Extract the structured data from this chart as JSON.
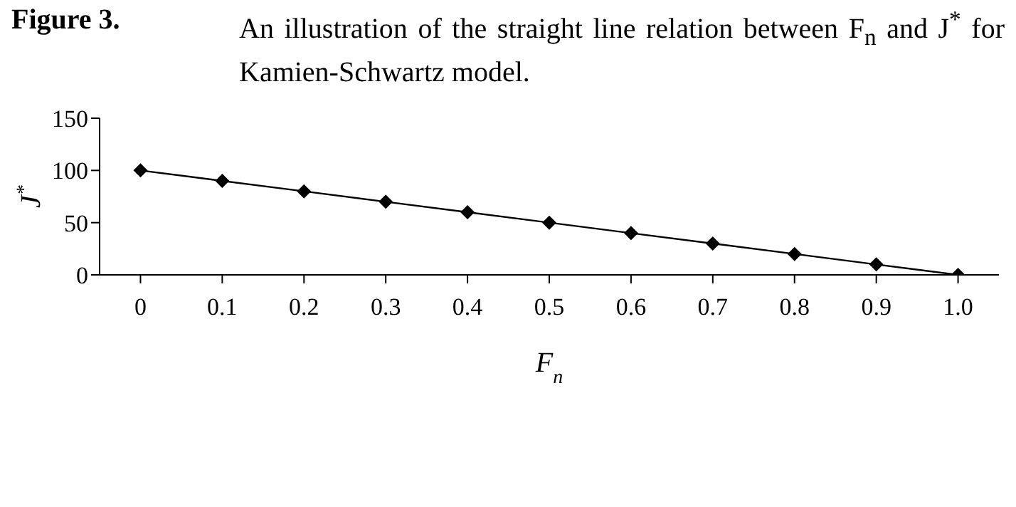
{
  "chart_data": {
    "type": "line",
    "title": "Figure 3.",
    "subtitle": "An illustration of the straight line relation between F$_{n}$ and J$^{*}$ for Kamien-Schwartz model.",
    "xlabel": "F$_{n}$",
    "ylabel": "J$^{*}$",
    "categories": [
      "0",
      "0.1",
      "0.2",
      "0.3",
      "0.4",
      "0.5",
      "0.6",
      "0.7",
      "0.8",
      "0.9",
      "1.0"
    ],
    "series": [
      {
        "color": "#000000",
        "values": [
          100,
          90,
          80,
          70,
          60,
          50,
          40,
          30,
          20,
          10,
          0
        ]
      }
    ],
    "ylim": [
      0,
      150
    ],
    "yticks": [
      0,
      50,
      100,
      150
    ],
    "grid": false,
    "legend": false,
    "marker": "diamond",
    "line_style": "solid"
  }
}
